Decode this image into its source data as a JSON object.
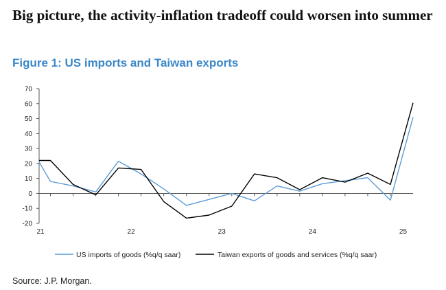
{
  "headline": "Big picture, the activity-inflation tradeoff could worsen into summer",
  "figure_title": "Figure 1: US imports and Taiwan exports",
  "source": "Source: J.P. Morgan.",
  "colors": {
    "series1": "#5b9bd5",
    "series2": "#000000",
    "title": "#3a87c8"
  },
  "chart_data": {
    "type": "line",
    "title": "Figure 1: US imports and Taiwan exports",
    "xlabel": "",
    "ylabel": "",
    "ylim": [
      -20,
      70
    ],
    "yticks": [
      -20,
      -10,
      0,
      10,
      20,
      30,
      40,
      50,
      60,
      70
    ],
    "xlim": [
      0,
      16.5
    ],
    "xticks": [
      {
        "label": "21",
        "at": 0
      },
      {
        "label": "22",
        "at": 4
      },
      {
        "label": "23",
        "at": 8
      },
      {
        "label": "24",
        "at": 12
      },
      {
        "label": "25",
        "at": 16
      }
    ],
    "x": [
      0,
      0.5,
      1.5,
      2.5,
      3.5,
      4.5,
      5.5,
      6.5,
      7.5,
      8.5,
      9.5,
      10.5,
      11.5,
      12.5,
      13.5,
      14.5,
      15.5,
      16.5
    ],
    "legend_position": "bottom",
    "series": [
      {
        "name": "US imports of goods (%q/q saar)",
        "color": "#5b9bd5",
        "values": [
          21,
          8,
          5,
          1,
          21.5,
          13,
          3,
          -8,
          -4,
          0,
          -5,
          5,
          1.5,
          6.5,
          8.5,
          10.5,
          -4.5,
          51
        ]
      },
      {
        "name": "Taiwan exports of goods and services (%q/q saar)",
        "color": "#000000",
        "values": [
          22,
          22,
          6,
          -1,
          17,
          16,
          -5.5,
          -16.5,
          -14.5,
          -8.5,
          13,
          10.5,
          2.5,
          10.5,
          7.5,
          13.5,
          6,
          60.5
        ]
      }
    ]
  }
}
